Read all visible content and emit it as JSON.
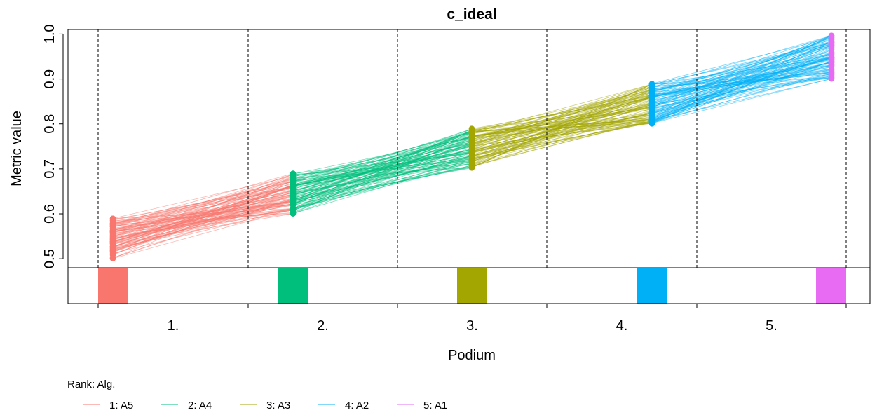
{
  "chart_data": {
    "type": "line",
    "title": "c_ideal",
    "xlabel": "Podium",
    "ylabel": "Metric value",
    "ylim": [
      0.48,
      1.01
    ],
    "yticks": [
      "0.5",
      "0.6",
      "0.7",
      "0.8",
      "0.9",
      "1.0"
    ],
    "podium_labels": [
      "1.",
      "2.",
      "3.",
      "4.",
      "5."
    ],
    "legend_title": "Rank: Alg.",
    "legend_position": "bottom-left",
    "grid": false,
    "series": [
      {
        "name": "1: A5",
        "color": "#F8766D",
        "range": [
          0.5,
          0.59
        ]
      },
      {
        "name": "2: A4",
        "color": "#00BF7D",
        "range": [
          0.6,
          0.69
        ]
      },
      {
        "name": "3: A3",
        "color": "#A3A500",
        "range": [
          0.7,
          0.79
        ]
      },
      {
        "name": "4: A2",
        "color": "#00B0F6",
        "range": [
          0.8,
          0.89
        ]
      },
      {
        "name": "5: A1",
        "color": "#E76BF3",
        "range": [
          0.9,
          1.0
        ]
      }
    ],
    "bar_heights": [
      1,
      1,
      1,
      1,
      1
    ],
    "samples": 100
  }
}
